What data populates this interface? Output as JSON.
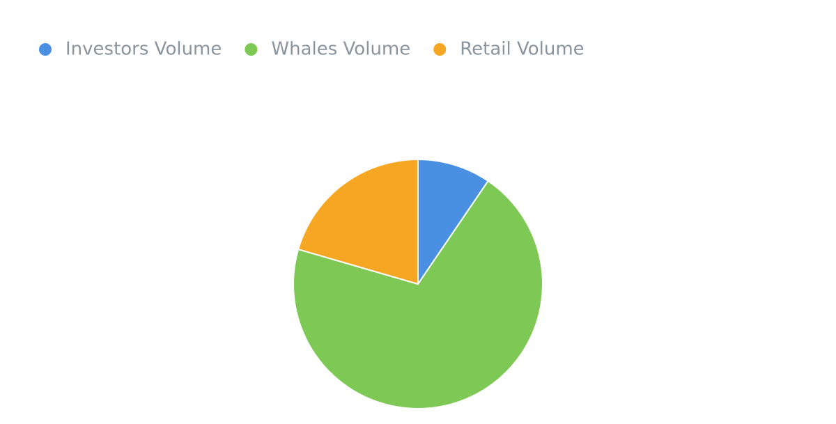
{
  "chart_data": {
    "type": "pie",
    "categories": [
      "Investors Volume",
      "Whales Volume",
      "Retail Volume"
    ],
    "values": [
      9.5,
      70,
      20.5
    ],
    "colors": [
      "#4a90e2",
      "#7ec855",
      "#f5a623"
    ],
    "legend": "top-left"
  }
}
